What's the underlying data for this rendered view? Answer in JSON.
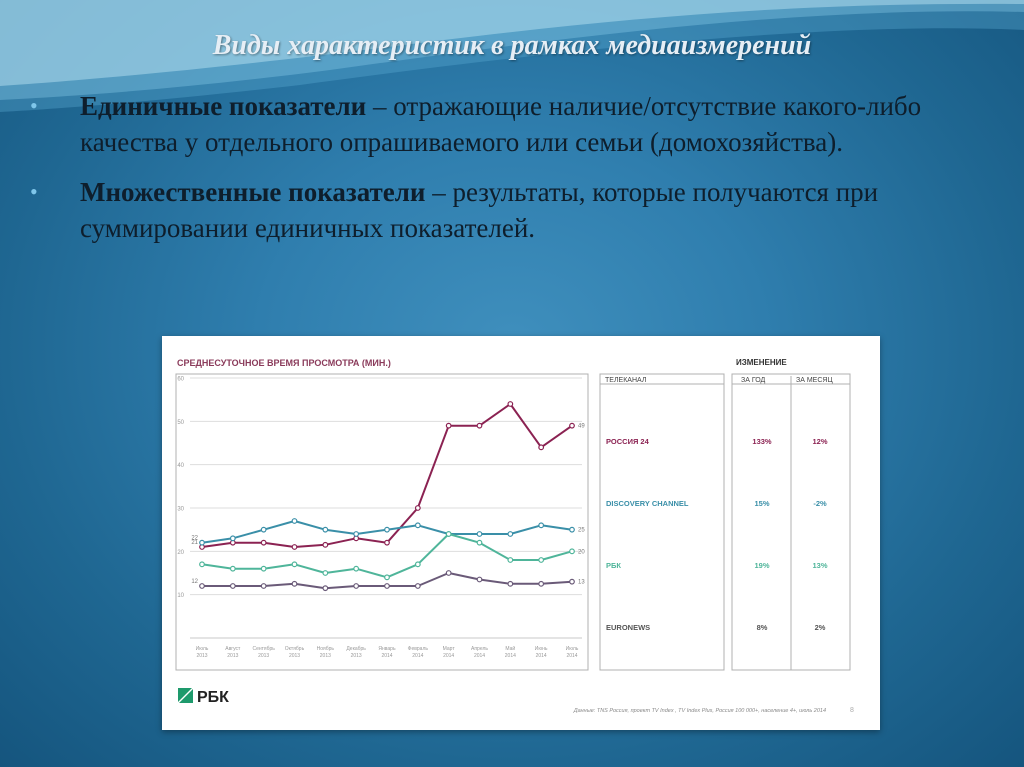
{
  "slide": {
    "title": "Виды характеристик в рамках медиаизмерений",
    "bullets": [
      {
        "bold": "Единичные показатели",
        "rest": " – отражающие наличие/отсутствие какого-либо качества у отдельного опрашиваемого или семьи (домохозяйства)."
      },
      {
        "bold": "Множественные показатели",
        "rest": " – результаты, которые получаются при суммировании единичных показателей."
      }
    ]
  },
  "chart_data": {
    "type": "line",
    "title": "СРЕДНЕСУТОЧНОЕ ВРЕМЯ ПРОСМОТРА (МИН.)",
    "ylim": [
      0,
      60
    ],
    "yticks": [
      10,
      20,
      30,
      40,
      50,
      60
    ],
    "grid": true,
    "categories": [
      "Июль 2013",
      "Август 2013",
      "Сентябрь 2013",
      "Октябрь 2013",
      "Ноябрь 2013",
      "Декабрь 2013",
      "Январь 2014",
      "Февраль 2014",
      "Март 2014",
      "Апрель 2014",
      "Май 2014",
      "Июнь 2014",
      "Июль 2014"
    ],
    "series": [
      {
        "name": "РОССИЯ 24",
        "color": "#8b2252",
        "values": [
          21,
          22,
          22,
          21,
          21.5,
          23,
          22,
          30,
          49,
          49,
          54,
          44,
          49
        ],
        "start_label": "21",
        "end_label": "49"
      },
      {
        "name": "DISCOVERY CHANNEL",
        "color": "#3a8fa8",
        "values": [
          22,
          23,
          25,
          27,
          25,
          24,
          25,
          26,
          24,
          24,
          24,
          26,
          25
        ],
        "start_label": "22",
        "end_label": "25"
      },
      {
        "name": "РБК",
        "color": "#4fb59a",
        "values": [
          17,
          16,
          16,
          17,
          15,
          16,
          14,
          17,
          24,
          22,
          18,
          18,
          20
        ],
        "start_label": "",
        "end_label": "20"
      },
      {
        "name": "EURONEWS",
        "color": "#6a5a78",
        "values": [
          12,
          12,
          12,
          12.5,
          11.5,
          12,
          12,
          12,
          15,
          13.5,
          12.5,
          12.5,
          13
        ],
        "start_label": "12",
        "end_label": "13"
      }
    ],
    "table": {
      "group_header": "ИЗМЕНЕНИЕ",
      "col_channel": "ТЕЛЕКАНАЛ",
      "col_year": "ЗА ГОД",
      "col_month": "ЗА МЕСЯЦ",
      "rows": [
        {
          "channel": "РОССИЯ 24",
          "year": "133%",
          "month": "12%",
          "color": "#8b2252"
        },
        {
          "channel": "DISCOVERY CHANNEL",
          "year": "15%",
          "month": "-2%",
          "color": "#3a8fa8"
        },
        {
          "channel": "РБК",
          "year": "19%",
          "month": "13%",
          "color": "#4fb59a"
        },
        {
          "channel": "EURONEWS",
          "year": "8%",
          "month": "2%",
          "color": "#555555"
        }
      ]
    },
    "logo": "РБК",
    "source": "Данные: TNS Россия, проект TV Index , TV Index Plus, Россия 100 000+, население 4+, июль 2014",
    "page_number": "8"
  }
}
